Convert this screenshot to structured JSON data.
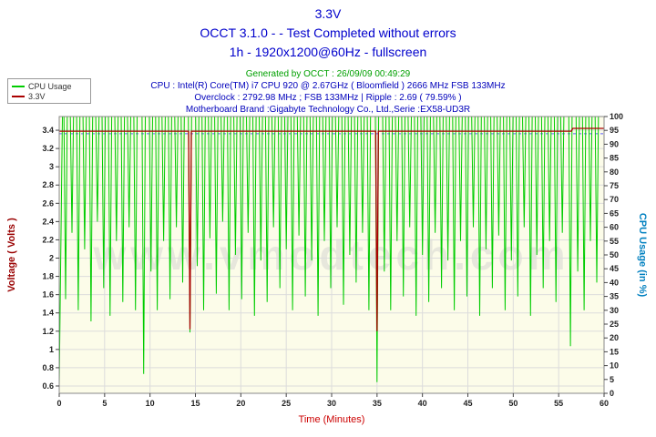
{
  "header": {
    "title": "3.3V",
    "subtitle": "OCCT 3.1.0 -  - Test Completed without errors",
    "subtitle2": "1h - 1920x1200@60Hz - fullscreen",
    "generated": "Generated by OCCT : 26/09/09 00:49:29",
    "cpu_line": "CPU : Intel(R) Core(TM) i7 CPU 920 @ 2.67GHz ( Bloomfield ) 2666 MHz FSB 133MHz",
    "overclock_line": "Overclock : 2792.98 MHz ; FSB 133MHz | Ripple : 2.69 ( 79.59% )",
    "motherboard_line": "Motherboard Brand :Gigabyte Technology Co., Ltd.,Serie :EX58-UD3R"
  },
  "legend": {
    "items": [
      {
        "label": "CPU Usage",
        "color": "#00cc00"
      },
      {
        "label": "3.3V",
        "color": "#aa0000"
      }
    ]
  },
  "watermark": "www.vmodtech.com",
  "chart_data": {
    "type": "line",
    "title": "3.3V",
    "xlabel": "Time (Minutes)",
    "ylabel_left": "Voltage ( Volts )",
    "ylabel_right": "CPU Usage (in %)",
    "plot_bg": "#fcfce9",
    "watermark_color": "#e7e7dc",
    "grid_color": "#dcdcdc",
    "frame_color": "#888888",
    "tick_color": "#222222",
    "left_axis_color": "#990000",
    "right_axis_color": "#0080c0",
    "xlabel_color": "#cc0000",
    "x_range": [
      0,
      60
    ],
    "x_ticks": [
      0,
      5,
      10,
      15,
      20,
      25,
      30,
      35,
      40,
      45,
      50,
      55,
      60
    ],
    "volt_range": [
      0.52,
      3.55
    ],
    "volt_ticks": [
      "3.4",
      "3.2",
      "3",
      "2.8",
      "2.6",
      "2.4",
      "2.2",
      "2",
      "1.8",
      "1.6",
      "1.4",
      "1.2",
      "1",
      "0.8",
      "0.6"
    ],
    "pct_ticks": [
      100,
      95,
      90,
      85,
      80,
      75,
      70,
      65,
      60,
      55,
      50,
      45,
      40,
      35,
      30,
      25,
      20,
      15,
      10,
      5,
      0
    ],
    "ref_line": {
      "value": 93.8,
      "color": "#5c5cff",
      "axis": "pct",
      "style": "dashed"
    },
    "series": [
      {
        "name": "CPU Usage",
        "axis": "pct",
        "color": "#00cc00",
        "baseline": 100,
        "start": [
          0,
          3
        ],
        "spikes": [
          [
            0.7,
            34
          ],
          [
            1.4,
            58
          ],
          [
            2.1,
            30
          ],
          [
            2.8,
            52
          ],
          [
            3.5,
            26
          ],
          [
            4.2,
            62
          ],
          [
            4.9,
            38
          ],
          [
            5.6,
            28
          ],
          [
            6.3,
            55
          ],
          [
            7.0,
            33
          ],
          [
            7.7,
            60
          ],
          [
            8.4,
            30
          ],
          [
            9.3,
            7
          ],
          [
            10.1,
            44
          ],
          [
            10.8,
            30
          ],
          [
            11.5,
            55
          ],
          [
            12.2,
            34
          ],
          [
            12.9,
            60
          ],
          [
            13.6,
            40
          ],
          [
            14.4,
            22
          ],
          [
            15.2,
            46
          ],
          [
            15.9,
            30
          ],
          [
            16.6,
            56
          ],
          [
            17.3,
            36
          ],
          [
            18.0,
            62
          ],
          [
            18.7,
            30
          ],
          [
            19.4,
            50
          ],
          [
            20.1,
            34
          ],
          [
            20.8,
            58
          ],
          [
            21.5,
            28
          ],
          [
            22.2,
            48
          ],
          [
            22.9,
            33
          ],
          [
            23.6,
            60
          ],
          [
            24.3,
            38
          ],
          [
            25.0,
            52
          ],
          [
            25.7,
            30
          ],
          [
            26.4,
            57
          ],
          [
            27.1,
            35
          ],
          [
            27.8,
            48
          ],
          [
            28.5,
            28
          ],
          [
            29.2,
            55
          ],
          [
            29.9,
            38
          ],
          [
            30.6,
            60
          ],
          [
            31.3,
            32
          ],
          [
            32.0,
            50
          ],
          [
            32.7,
            40
          ],
          [
            33.4,
            58
          ],
          [
            34.1,
            30
          ],
          [
            35.0,
            4
          ],
          [
            35.8,
            44
          ],
          [
            36.5,
            30
          ],
          [
            37.2,
            55
          ],
          [
            37.9,
            35
          ],
          [
            38.6,
            60
          ],
          [
            39.3,
            28
          ],
          [
            40.0,
            50
          ],
          [
            40.7,
            33
          ],
          [
            41.4,
            58
          ],
          [
            42.1,
            38
          ],
          [
            42.8,
            48
          ],
          [
            43.5,
            30
          ],
          [
            44.2,
            55
          ],
          [
            44.9,
            35
          ],
          [
            45.6,
            60
          ],
          [
            46.3,
            28
          ],
          [
            47.0,
            52
          ],
          [
            47.7,
            38
          ],
          [
            48.4,
            57
          ],
          [
            49.1,
            30
          ],
          [
            49.8,
            48
          ],
          [
            50.5,
            35
          ],
          [
            51.2,
            60
          ],
          [
            51.9,
            28
          ],
          [
            52.6,
            50
          ],
          [
            53.3,
            38
          ],
          [
            54.0,
            55
          ],
          [
            54.7,
            33
          ],
          [
            55.4,
            58
          ],
          [
            56.3,
            17
          ],
          [
            57.1,
            44
          ],
          [
            57.8,
            30
          ],
          [
            58.5,
            55
          ],
          [
            59.2,
            40
          ]
        ]
      },
      {
        "name": "3.3V",
        "axis": "volt",
        "color": "#aa0000",
        "points": [
          [
            0,
            3.39
          ],
          [
            14.25,
            3.39
          ],
          [
            14.4,
            1.22
          ],
          [
            14.55,
            3.39
          ],
          [
            34.85,
            3.39
          ],
          [
            35.0,
            1.2
          ],
          [
            35.15,
            3.39
          ],
          [
            56.4,
            3.39
          ],
          [
            56.55,
            3.42
          ],
          [
            60,
            3.42
          ]
        ]
      }
    ]
  }
}
